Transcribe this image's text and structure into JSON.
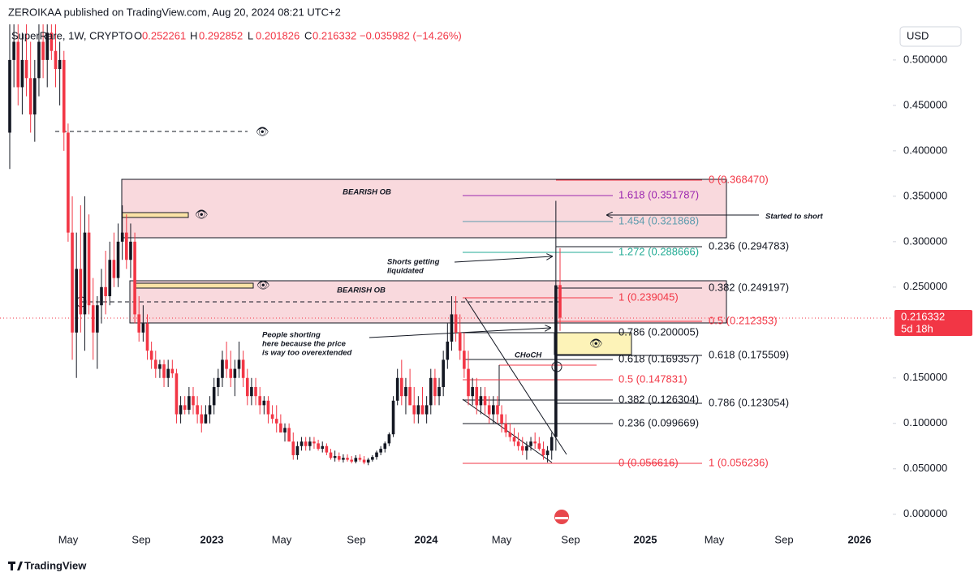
{
  "header": {
    "publisher": "ZEROIKAA published on TradingView.com, Aug 20, 2024 08:21 UTC+2"
  },
  "legend": {
    "symbol": "SuperRare, 1W, CRYPTO",
    "o": "O",
    "h": "H",
    "l": "L",
    "c": "C",
    "change": "−0.035982 (−14.26%)"
  },
  "price_axis": {
    "currency": "USD",
    "range": [
      -0.019,
      0.566
    ],
    "ticks": [
      {
        "value": 0.5,
        "label": "0.500000"
      },
      {
        "value": 0.45,
        "label": "0.450000"
      },
      {
        "value": 0.4,
        "label": "0.400000"
      },
      {
        "value": 0.35,
        "label": "0.350000"
      },
      {
        "value": 0.3,
        "label": "0.300000"
      },
      {
        "value": 0.25,
        "label": "0.250000"
      },
      {
        "value": 0.15,
        "label": "0.150000"
      },
      {
        "value": 0.1,
        "label": "0.100000"
      },
      {
        "value": 0.05,
        "label": "0.050000"
      },
      {
        "value": 0,
        "label": "0.000000"
      }
    ],
    "countdown": "5d 18h"
  },
  "time_axis": [
    "May",
    "Sep",
    "2023",
    "May",
    "Sep",
    "2024",
    "May",
    "Sep",
    "2025",
    "May",
    "Sep",
    "2026"
  ],
  "candles": [
    [
      0.42,
      0.55,
      0.38,
      0.5
    ],
    [
      0.5,
      0.56,
      0.47,
      0.52
    ],
    [
      0.52,
      0.55,
      0.45,
      0.47
    ],
    [
      0.47,
      0.53,
      0.44,
      0.5
    ],
    [
      0.5,
      0.56,
      0.46,
      0.48
    ],
    [
      0.48,
      0.52,
      0.42,
      0.44
    ],
    [
      0.44,
      0.5,
      0.41,
      0.48
    ],
    [
      0.48,
      0.56,
      0.46,
      0.52
    ],
    [
      0.52,
      0.56,
      0.48,
      0.5
    ],
    [
      0.5,
      0.55,
      0.47,
      0.53
    ],
    [
      0.53,
      0.56,
      0.5,
      0.51
    ],
    [
      0.51,
      0.54,
      0.47,
      0.49
    ],
    [
      0.49,
      0.52,
      0.45,
      0.5
    ],
    [
      0.5,
      0.51,
      0.4,
      0.42
    ],
    [
      0.42,
      0.43,
      0.3,
      0.31
    ],
    [
      0.31,
      0.35,
      0.17,
      0.2
    ],
    [
      0.2,
      0.31,
      0.15,
      0.27
    ],
    [
      0.27,
      0.34,
      0.2,
      0.22
    ],
    [
      0.22,
      0.35,
      0.18,
      0.31
    ],
    [
      0.31,
      0.33,
      0.22,
      0.23
    ],
    [
      0.23,
      0.26,
      0.17,
      0.2
    ],
    [
      0.2,
      0.24,
      0.16,
      0.23
    ],
    [
      0.23,
      0.27,
      0.21,
      0.25
    ],
    [
      0.25,
      0.29,
      0.22,
      0.24
    ],
    [
      0.24,
      0.3,
      0.23,
      0.28
    ],
    [
      0.28,
      0.31,
      0.25,
      0.26
    ],
    [
      0.26,
      0.32,
      0.25,
      0.3
    ],
    [
      0.3,
      0.34,
      0.28,
      0.31
    ],
    [
      0.31,
      0.33,
      0.27,
      0.28
    ],
    [
      0.28,
      0.32,
      0.26,
      0.3
    ],
    [
      0.3,
      0.31,
      0.21,
      0.22
    ],
    [
      0.22,
      0.24,
      0.19,
      0.2
    ],
    [
      0.2,
      0.23,
      0.19,
      0.21
    ],
    [
      0.21,
      0.22,
      0.17,
      0.18
    ],
    [
      0.18,
      0.19,
      0.16,
      0.17
    ],
    [
      0.17,
      0.18,
      0.15,
      0.16
    ],
    [
      0.16,
      0.17,
      0.15,
      0.165
    ],
    [
      0.165,
      0.17,
      0.14,
      0.15
    ],
    [
      0.15,
      0.17,
      0.14,
      0.16
    ],
    [
      0.16,
      0.17,
      0.15,
      0.155
    ],
    [
      0.155,
      0.16,
      0.1,
      0.11
    ],
    [
      0.11,
      0.13,
      0.1,
      0.12
    ],
    [
      0.12,
      0.13,
      0.11,
      0.115
    ],
    [
      0.115,
      0.14,
      0.11,
      0.13
    ],
    [
      0.13,
      0.14,
      0.11,
      0.12
    ],
    [
      0.12,
      0.13,
      0.1,
      0.11
    ],
    [
      0.11,
      0.12,
      0.09,
      0.1
    ],
    [
      0.1,
      0.12,
      0.1,
      0.11
    ],
    [
      0.11,
      0.13,
      0.1,
      0.12
    ],
    [
      0.12,
      0.15,
      0.11,
      0.14
    ],
    [
      0.14,
      0.16,
      0.13,
      0.15
    ],
    [
      0.15,
      0.18,
      0.14,
      0.17
    ],
    [
      0.17,
      0.19,
      0.15,
      0.16
    ],
    [
      0.16,
      0.18,
      0.14,
      0.15
    ],
    [
      0.15,
      0.17,
      0.13,
      0.16
    ],
    [
      0.16,
      0.19,
      0.15,
      0.17
    ],
    [
      0.17,
      0.18,
      0.14,
      0.15
    ],
    [
      0.15,
      0.16,
      0.12,
      0.13
    ],
    [
      0.13,
      0.15,
      0.12,
      0.14
    ],
    [
      0.14,
      0.15,
      0.12,
      0.13
    ],
    [
      0.13,
      0.14,
      0.11,
      0.12
    ],
    [
      0.12,
      0.13,
      0.11,
      0.125
    ],
    [
      0.125,
      0.13,
      0.1,
      0.11
    ],
    [
      0.11,
      0.12,
      0.1,
      0.105
    ],
    [
      0.105,
      0.12,
      0.09,
      0.1
    ],
    [
      0.1,
      0.11,
      0.09,
      0.09
    ],
    [
      0.09,
      0.1,
      0.08,
      0.095
    ],
    [
      0.095,
      0.1,
      0.08,
      0.08
    ],
    [
      0.08,
      0.09,
      0.06,
      0.065
    ],
    [
      0.065,
      0.08,
      0.06,
      0.075
    ],
    [
      0.075,
      0.085,
      0.07,
      0.08
    ],
    [
      0.08,
      0.085,
      0.07,
      0.075
    ],
    [
      0.075,
      0.085,
      0.07,
      0.08
    ],
    [
      0.08,
      0.085,
      0.072,
      0.078
    ],
    [
      0.078,
      0.082,
      0.07,
      0.072
    ],
    [
      0.072,
      0.08,
      0.068,
      0.075
    ],
    [
      0.075,
      0.078,
      0.065,
      0.068
    ],
    [
      0.068,
      0.072,
      0.06,
      0.062
    ],
    [
      0.062,
      0.07,
      0.058,
      0.064
    ],
    [
      0.064,
      0.068,
      0.058,
      0.06
    ],
    [
      0.06,
      0.066,
      0.057,
      0.062
    ],
    [
      0.062,
      0.066,
      0.058,
      0.06
    ],
    [
      0.06,
      0.064,
      0.056,
      0.058
    ],
    [
      0.058,
      0.065,
      0.056,
      0.062
    ],
    [
      0.062,
      0.066,
      0.058,
      0.06
    ],
    [
      0.06,
      0.064,
      0.055,
      0.057
    ],
    [
      0.057,
      0.062,
      0.054,
      0.06
    ],
    [
      0.06,
      0.065,
      0.058,
      0.063
    ],
    [
      0.063,
      0.07,
      0.06,
      0.068
    ],
    [
      0.068,
      0.075,
      0.065,
      0.072
    ],
    [
      0.072,
      0.08,
      0.068,
      0.078
    ],
    [
      0.078,
      0.09,
      0.075,
      0.088
    ],
    [
      0.088,
      0.13,
      0.085,
      0.125
    ],
    [
      0.125,
      0.16,
      0.12,
      0.15
    ],
    [
      0.15,
      0.17,
      0.12,
      0.13
    ],
    [
      0.13,
      0.15,
      0.11,
      0.14
    ],
    [
      0.14,
      0.16,
      0.12,
      0.12
    ],
    [
      0.12,
      0.14,
      0.1,
      0.11
    ],
    [
      0.11,
      0.13,
      0.1,
      0.12
    ],
    [
      0.12,
      0.14,
      0.11,
      0.11
    ],
    [
      0.11,
      0.13,
      0.1,
      0.12
    ],
    [
      0.12,
      0.16,
      0.11,
      0.15
    ],
    [
      0.15,
      0.16,
      0.12,
      0.13
    ],
    [
      0.13,
      0.15,
      0.12,
      0.14
    ],
    [
      0.14,
      0.18,
      0.13,
      0.17
    ],
    [
      0.17,
      0.21,
      0.16,
      0.19
    ],
    [
      0.19,
      0.24,
      0.18,
      0.22
    ],
    [
      0.22,
      0.24,
      0.19,
      0.2
    ],
    [
      0.2,
      0.22,
      0.17,
      0.18
    ],
    [
      0.18,
      0.2,
      0.15,
      0.16
    ],
    [
      0.16,
      0.18,
      0.12,
      0.13
    ],
    [
      0.13,
      0.15,
      0.12,
      0.14
    ],
    [
      0.14,
      0.15,
      0.11,
      0.12
    ],
    [
      0.12,
      0.14,
      0.11,
      0.13
    ],
    [
      0.13,
      0.14,
      0.11,
      0.12
    ],
    [
      0.12,
      0.13,
      0.1,
      0.11
    ],
    [
      0.11,
      0.13,
      0.1,
      0.12
    ],
    [
      0.12,
      0.13,
      0.1,
      0.11
    ],
    [
      0.11,
      0.12,
      0.09,
      0.1
    ],
    [
      0.1,
      0.11,
      0.085,
      0.09
    ],
    [
      0.09,
      0.1,
      0.08,
      0.085
    ],
    [
      0.085,
      0.095,
      0.075,
      0.08
    ],
    [
      0.08,
      0.09,
      0.07,
      0.075
    ],
    [
      0.075,
      0.085,
      0.065,
      0.07
    ],
    [
      0.07,
      0.08,
      0.06,
      0.075
    ],
    [
      0.075,
      0.085,
      0.07,
      0.08
    ],
    [
      0.08,
      0.09,
      0.072,
      0.078
    ],
    [
      0.078,
      0.085,
      0.07,
      0.072
    ],
    [
      0.072,
      0.08,
      0.06,
      0.065
    ],
    [
      0.065,
      0.075,
      0.057,
      0.07
    ],
    [
      0.07,
      0.09,
      0.06,
      0.085
    ],
    [
      0.085,
      0.345,
      0.07,
      0.252
    ],
    [
      0.252261,
      0.292852,
      0.201826,
      0.216332
    ]
  ],
  "annotations": {
    "bearish_ob_upper": "BEARISH OB",
    "bearish_ob_lower": "BEARISH OB",
    "started_short": "Started to short",
    "shorts_liquidated": [
      "Shorts getting",
      "liquidated"
    ],
    "people_shorting": [
      "People shorting",
      "here because the price",
      "is way too overextended"
    ],
    "choch": "CHoCH"
  },
  "fib_left": [
    "1.618 (0.351787)",
    "1.454 (0.321868)",
    "1.272 (0.288666)",
    "1 (0.239045)",
    "0.786 (0.200005)",
    "0.618 (0.169357)",
    "0.5 (0.147831)",
    "0.382 (0.126304)",
    "0.236 (0.099669)",
    "0 (0.056616)"
  ],
  "fib_right": [
    "0 (0.368470)",
    "0.236 (0.294783)",
    "0.382 (0.249197)",
    "0.5 (0.212353)",
    "0.618 (0.175509)",
    "0.786 (0.123054)",
    "1 (0.056236)"
  ],
  "footer": {
    "brand": "TradingView"
  }
}
